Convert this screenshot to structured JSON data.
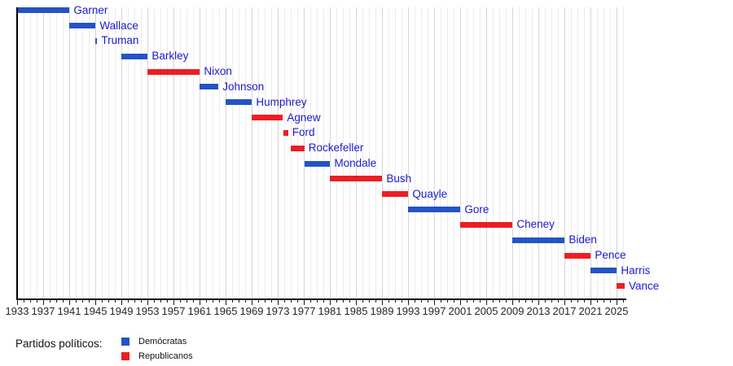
{
  "chart_data": {
    "type": "bar",
    "subtype": "horizontal-timeline",
    "title": "",
    "xlabel": "",
    "ylabel": "",
    "x_axis": {
      "min": 1933,
      "max": 2026.4,
      "labeled_tick_years": [
        1933,
        1937,
        1941,
        1945,
        1949,
        1953,
        1957,
        1961,
        1965,
        1969,
        1973,
        1977,
        1981,
        1985,
        1989,
        1993,
        1997,
        2001,
        2005,
        2009,
        2013,
        2017,
        2021,
        2025
      ],
      "minor_tick_step_years": 1,
      "grid": "vertical, minor every year, major every 4 years"
    },
    "series_colors": {
      "Demócratas": "#2453c6",
      "Republicanos": "#ee1c25"
    },
    "bars": [
      {
        "label": "Garner",
        "party": "Demócratas",
        "start": 1933.05,
        "end": 1941.05
      },
      {
        "label": "Wallace",
        "party": "Demócratas",
        "start": 1941.05,
        "end": 1945.05
      },
      {
        "label": "Truman",
        "party": "Demócratas",
        "start": 1945.05,
        "end": 1945.3
      },
      {
        "label": "Barkley",
        "party": "Demócratas",
        "start": 1949.05,
        "end": 1953.05
      },
      {
        "label": "Nixon",
        "party": "Republicanos",
        "start": 1953.05,
        "end": 1961.05
      },
      {
        "label": "Johnson",
        "party": "Demócratas",
        "start": 1961.05,
        "end": 1963.9
      },
      {
        "label": "Humphrey",
        "party": "Demócratas",
        "start": 1965.05,
        "end": 1969.05
      },
      {
        "label": "Agnew",
        "party": "Republicanos",
        "start": 1969.05,
        "end": 1973.8
      },
      {
        "label": "Ford",
        "party": "Republicanos",
        "start": 1973.92,
        "end": 1974.6
      },
      {
        "label": "Rockefeller",
        "party": "Republicanos",
        "start": 1974.95,
        "end": 1977.1
      },
      {
        "label": "Mondale",
        "party": "Demócratas",
        "start": 1977.1,
        "end": 1981.05
      },
      {
        "label": "Bush",
        "party": "Republicanos",
        "start": 1981.05,
        "end": 1989.05
      },
      {
        "label": "Quayle",
        "party": "Republicanos",
        "start": 1989.05,
        "end": 1993.05
      },
      {
        "label": "Gore",
        "party": "Demócratas",
        "start": 1993.05,
        "end": 2001.05
      },
      {
        "label": "Cheney",
        "party": "Republicanos",
        "start": 2001.05,
        "end": 2009.05
      },
      {
        "label": "Biden",
        "party": "Demócratas",
        "start": 2009.05,
        "end": 2017.05
      },
      {
        "label": "Pence",
        "party": "Republicanos",
        "start": 2017.05,
        "end": 2021.05
      },
      {
        "label": "Harris",
        "party": "Demócratas",
        "start": 2021.05,
        "end": 2025.05
      },
      {
        "label": "Vance",
        "party": "Republicanos",
        "start": 2025.05,
        "end": 2026.25
      }
    ]
  },
  "legend": {
    "title": "Partidos políticos:",
    "items": [
      {
        "label": "Demócratas",
        "color": "#2453c6"
      },
      {
        "label": "Republicanos",
        "color": "#ee1c25"
      }
    ]
  },
  "colors": {
    "bar_blue": "#2453c6",
    "bar_red": "#ee1c25",
    "bar_label_text": "#1a1acc",
    "axis_text": "#262626",
    "grid_minor": "#ececec",
    "grid_major": "#d5d5d5",
    "axis_line": "#000000"
  }
}
